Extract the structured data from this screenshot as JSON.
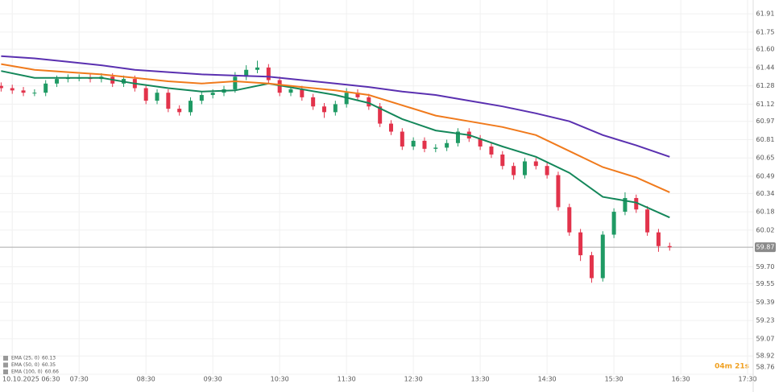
{
  "chart_data": {
    "type": "candlestick",
    "candles": {
      "x": [
        "06:20",
        "06:30",
        "06:40",
        "06:50",
        "07:00",
        "07:10",
        "07:20",
        "07:30",
        "07:40",
        "07:50",
        "08:00",
        "08:10",
        "08:20",
        "08:30",
        "08:40",
        "08:50",
        "09:00",
        "09:10",
        "09:20",
        "09:30",
        "09:40",
        "09:50",
        "10:00",
        "10:10",
        "10:20",
        "10:30",
        "10:40",
        "10:50",
        "11:00",
        "11:10",
        "11:20",
        "11:30",
        "11:40",
        "11:50",
        "12:00",
        "12:10",
        "12:20",
        "12:30",
        "12:40",
        "12:50",
        "13:00",
        "13:10",
        "13:20",
        "13:30",
        "13:40",
        "13:50",
        "14:00",
        "14:10",
        "14:20",
        "14:30",
        "14:40",
        "14:50",
        "15:00",
        "15:10",
        "15:20",
        "15:30",
        "15:40",
        "15:50",
        "16:00",
        "16:10",
        "16:20"
      ],
      "open": [
        61.28,
        61.26,
        61.24,
        61.22,
        61.22,
        61.3,
        61.34,
        61.35,
        61.35,
        61.34,
        61.36,
        61.3,
        61.34,
        61.26,
        61.15,
        61.22,
        61.08,
        61.05,
        61.15,
        61.2,
        61.22,
        61.25,
        61.36,
        61.42,
        61.44,
        61.33,
        61.22,
        61.25,
        61.18,
        61.1,
        61.05,
        61.12,
        61.22,
        61.18,
        61.1,
        60.95,
        60.88,
        60.75,
        60.8,
        60.73,
        60.74,
        60.78,
        60.88,
        60.82,
        60.75,
        60.68,
        60.58,
        60.5,
        60.62,
        60.58,
        60.5,
        60.22,
        60.0,
        59.8,
        59.6,
        59.98,
        60.18,
        60.3,
        60.2,
        60.0,
        59.88
      ],
      "high": [
        61.31,
        61.29,
        61.27,
        61.25,
        61.33,
        61.37,
        61.38,
        61.38,
        61.38,
        61.39,
        61.39,
        61.37,
        61.37,
        61.29,
        61.25,
        61.25,
        61.11,
        61.18,
        61.23,
        61.25,
        61.28,
        61.4,
        61.46,
        61.5,
        61.47,
        61.36,
        61.28,
        61.28,
        61.21,
        61.13,
        61.15,
        61.26,
        61.25,
        61.21,
        61.13,
        60.98,
        60.91,
        60.83,
        60.83,
        60.77,
        60.81,
        60.91,
        60.91,
        60.85,
        60.78,
        60.71,
        60.61,
        60.65,
        60.65,
        60.61,
        60.53,
        60.25,
        60.03,
        59.83,
        60.01,
        60.21,
        60.35,
        60.33,
        60.23,
        60.03,
        59.91
      ],
      "low": [
        61.23,
        61.21,
        61.19,
        61.19,
        61.19,
        61.27,
        61.31,
        61.32,
        61.31,
        61.31,
        61.27,
        61.27,
        61.23,
        61.12,
        61.12,
        61.05,
        61.02,
        61.02,
        61.12,
        61.17,
        61.19,
        61.22,
        61.33,
        61.39,
        61.3,
        61.19,
        61.19,
        61.15,
        61.07,
        61.0,
        61.02,
        61.09,
        61.15,
        61.07,
        60.92,
        60.85,
        60.72,
        60.72,
        60.7,
        60.7,
        60.71,
        60.75,
        60.79,
        60.72,
        60.65,
        60.55,
        60.46,
        60.47,
        60.55,
        60.47,
        60.19,
        59.97,
        59.75,
        59.56,
        59.57,
        59.95,
        60.15,
        60.17,
        59.97,
        59.83,
        59.84
      ],
      "close": [
        61.26,
        61.24,
        61.22,
        61.22,
        61.3,
        61.34,
        61.35,
        61.35,
        61.34,
        61.36,
        61.3,
        61.34,
        61.26,
        61.15,
        61.22,
        61.08,
        61.05,
        61.15,
        61.2,
        61.22,
        61.25,
        61.36,
        61.42,
        61.44,
        61.33,
        61.22,
        61.25,
        61.18,
        61.1,
        61.05,
        61.12,
        61.22,
        61.18,
        61.1,
        60.95,
        60.88,
        60.75,
        60.8,
        60.73,
        60.74,
        60.78,
        60.88,
        60.82,
        60.75,
        60.68,
        60.58,
        60.5,
        60.62,
        60.58,
        60.5,
        60.22,
        60.0,
        59.8,
        59.6,
        59.98,
        60.18,
        60.3,
        60.2,
        60.0,
        59.88,
        59.87
      ],
      "up_color": "#1f9a64",
      "down_color": "#e2334b"
    },
    "ema_x": [
      "06:20",
      "06:50",
      "07:20",
      "07:50",
      "08:20",
      "08:50",
      "09:20",
      "09:50",
      "10:20",
      "10:50",
      "11:20",
      "11:50",
      "12:20",
      "12:50",
      "13:20",
      "13:50",
      "14:20",
      "14:50",
      "15:20",
      "15:50",
      "16:20"
    ],
    "series": [
      {
        "name": "EMA (25, 0)",
        "color": "#14875a",
        "values": [
          61.41,
          61.35,
          61.35,
          61.35,
          61.3,
          61.26,
          61.23,
          61.24,
          61.3,
          61.25,
          61.2,
          61.13,
          60.99,
          60.89,
          60.85,
          60.75,
          60.66,
          60.52,
          60.31,
          60.26,
          60.13
        ]
      },
      {
        "name": "EMA (50, 0)",
        "color": "#f07a1c",
        "values": [
          61.47,
          61.42,
          61.4,
          61.38,
          61.35,
          61.32,
          61.3,
          61.32,
          61.3,
          61.27,
          61.24,
          61.2,
          61.11,
          61.02,
          60.97,
          60.92,
          60.85,
          60.71,
          60.57,
          60.48,
          60.35
        ]
      },
      {
        "name": "EMA (100, 0)",
        "color": "#5a30b0",
        "values": [
          61.54,
          61.52,
          61.49,
          61.46,
          61.42,
          61.4,
          61.38,
          61.37,
          61.36,
          61.33,
          61.3,
          61.27,
          61.23,
          61.2,
          61.15,
          61.1,
          61.04,
          60.97,
          60.85,
          60.76,
          60.66
        ]
      }
    ],
    "last_price": 59.87,
    "countdown": "04m 21s",
    "xlim": [
      "06:19",
      "17:35"
    ],
    "xticks": [
      "10.10.2025 06:30",
      "07:30",
      "08:30",
      "09:30",
      "10:30",
      "11:30",
      "12:30",
      "13:30",
      "14:30",
      "15:30",
      "16:30",
      "17:30"
    ],
    "ylim": [
      58.76,
      62.03
    ],
    "yticks": [
      61.91,
      61.75,
      {
        "value": 61.6,
        "label": "61.60"
      },
      61.44,
      61.28,
      61.12,
      60.97,
      60.81,
      60.65,
      60.49,
      60.34,
      60.18,
      60.02,
      {
        "value": 59.7,
        "label": "59.70"
      },
      59.55,
      59.39,
      59.23,
      59.07,
      58.92,
      58.76
    ],
    "grid": true
  }
}
